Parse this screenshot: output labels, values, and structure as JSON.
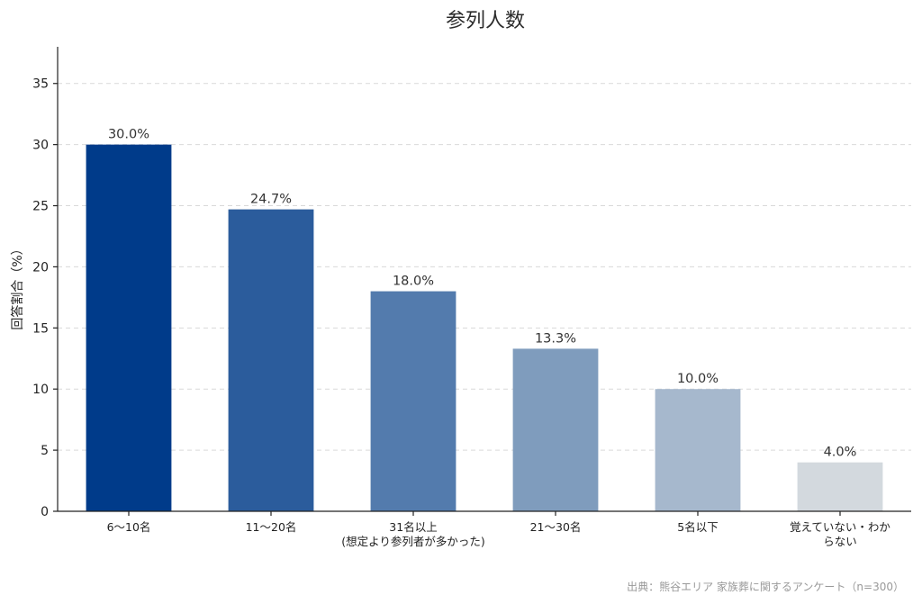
{
  "chart_data": {
    "type": "bar",
    "title": "参列人数",
    "ylabel": "回答割合（%）",
    "xlabel": "",
    "categories": [
      [
        "6〜10名"
      ],
      [
        "11〜20名"
      ],
      [
        "31名以上",
        "(想定より参列者が多かった)"
      ],
      [
        "21〜30名"
      ],
      [
        "5名以下"
      ],
      [
        "覚えていない・わか",
        "らない"
      ]
    ],
    "values": [
      30.0,
      24.7,
      18.0,
      13.3,
      10.0,
      4.0
    ],
    "value_labels": [
      "30.0%",
      "24.7%",
      "18.0%",
      "13.3%",
      "10.0%",
      "4.0%"
    ],
    "colors": [
      "#003b8a",
      "#2b5c9c",
      "#537bad",
      "#7f9cbd",
      "#a6b8cd",
      "#d3d9de"
    ],
    "ylim": [
      0,
      38
    ],
    "yticks": [
      0,
      5,
      10,
      15,
      20,
      25,
      30,
      35
    ],
    "grid": true,
    "source": "出典：熊谷エリア 家族葬に関するアンケート（n=300）"
  }
}
